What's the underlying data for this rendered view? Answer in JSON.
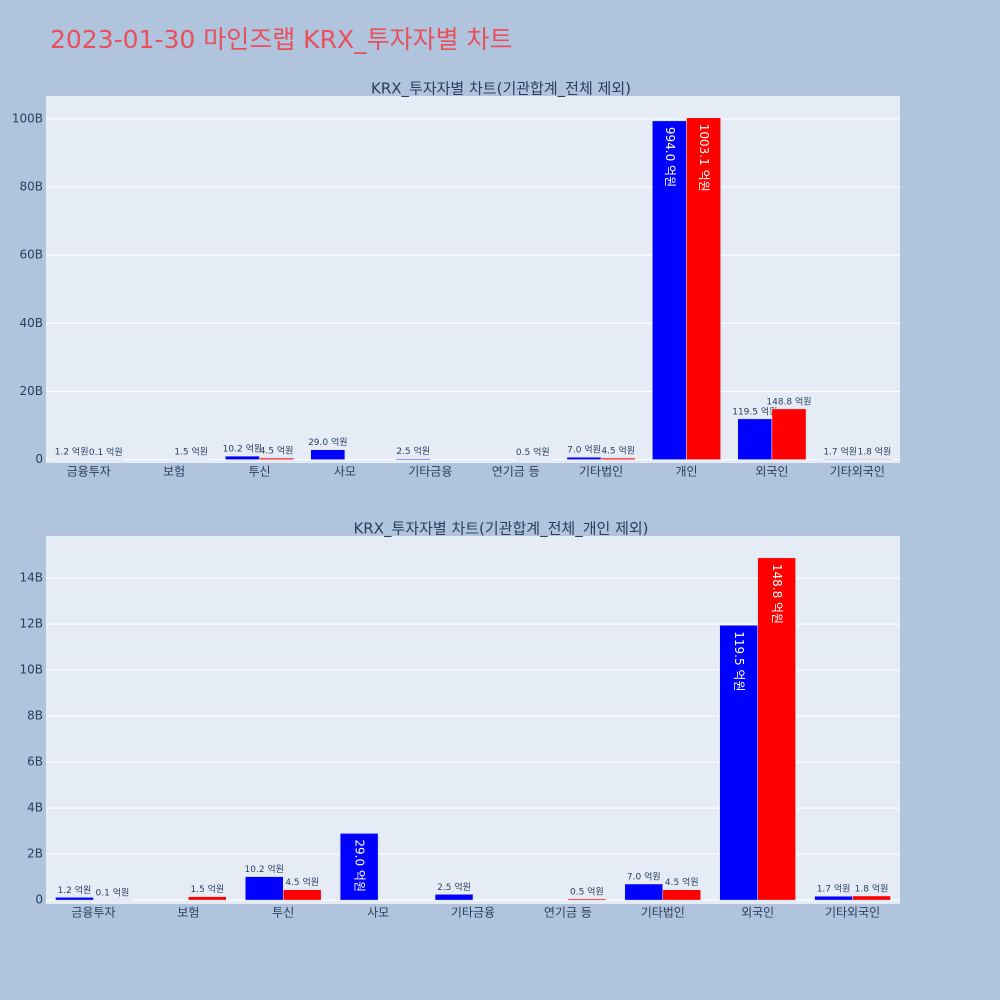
{
  "title": "2023-01-30 마인즈랩 KRX_투자자별 차트",
  "chart_data": [
    {
      "type": "bar",
      "title": "KRX_투자자별 차트(기관합계_전체 제외)",
      "categories": [
        "금융투자",
        "보험",
        "투신",
        "사모",
        "기타금융",
        "연기금 등",
        "기타법인",
        "개인",
        "외국인",
        "기타외국인"
      ],
      "series": [
        {
          "color": "#0000ff",
          "values": [
            120000000,
            null,
            1020000000,
            2900000000,
            250000000,
            null,
            700000000,
            99400000000,
            11950000000,
            170000000
          ],
          "value_labels": [
            "1.2 억원",
            null,
            "10.2 억원",
            "29.0 억원",
            "2.5 억원",
            null,
            "7.0 억원",
            "994.0 억원",
            "119.5 억원",
            "1.7 억원"
          ]
        },
        {
          "color": "#ff0000",
          "values": [
            10000000,
            150000000,
            450000000,
            null,
            null,
            50000000,
            450000000,
            100310000000,
            14880000000,
            180000000
          ],
          "value_labels": [
            "0.1 억원",
            "1.5 억원",
            "4.5 억원",
            null,
            null,
            "0.5 억원",
            "4.5 억원",
            "1003.1 억원",
            "148.8 억원",
            "1.8 억원"
          ]
        }
      ],
      "ylim": [
        -1000000000,
        106700000000
      ],
      "yticks": [
        0,
        {
          "value": 20000000000,
          "label": "20B"
        },
        {
          "value": 40000000000,
          "label": "40B"
        },
        {
          "value": 60000000000,
          "label": "60B"
        },
        {
          "value": 80000000000,
          "label": "80B"
        },
        {
          "value": 100000000000,
          "label": "100B"
        }
      ],
      "grid": true
    },
    {
      "type": "bar",
      "title": "KRX_투자자별 차트(기관합계_전체_개인 제외)",
      "categories": [
        "금융투자",
        "보험",
        "투신",
        "사모",
        "기타금융",
        "연기금 등",
        "기타법인",
        "외국인",
        "기타외국인"
      ],
      "series": [
        {
          "color": "#0000ff",
          "values": [
            120000000,
            null,
            1020000000,
            2900000000,
            250000000,
            null,
            700000000,
            11950000000,
            170000000
          ],
          "value_labels": [
            "1.2 억원",
            null,
            "10.2 억원",
            "29.0 억원",
            "2.5 억원",
            null,
            "7.0 억원",
            "119.5 억원",
            "1.7 억원"
          ]
        },
        {
          "color": "#ff0000",
          "values": [
            10000000,
            150000000,
            450000000,
            null,
            null,
            50000000,
            450000000,
            14880000000,
            180000000
          ],
          "value_labels": [
            "0.1 억원",
            "1.5 억원",
            "4.5 억원",
            null,
            null,
            "0.5 억원",
            "4.5 억원",
            "148.8 억원",
            "1.8 억원"
          ]
        }
      ],
      "ylim": [
        -170000000,
        15830000000
      ],
      "yticks": [
        0,
        {
          "value": 2000000000,
          "label": "2B"
        },
        {
          "value": 4000000000,
          "label": "4B"
        },
        {
          "value": 6000000000,
          "label": "6B"
        },
        {
          "value": 8000000000,
          "label": "8B"
        },
        {
          "value": 10000000000,
          "label": "10B"
        },
        {
          "value": 12000000000,
          "label": "12B"
        },
        {
          "value": 14000000000,
          "label": "14B"
        }
      ],
      "grid": true
    }
  ]
}
